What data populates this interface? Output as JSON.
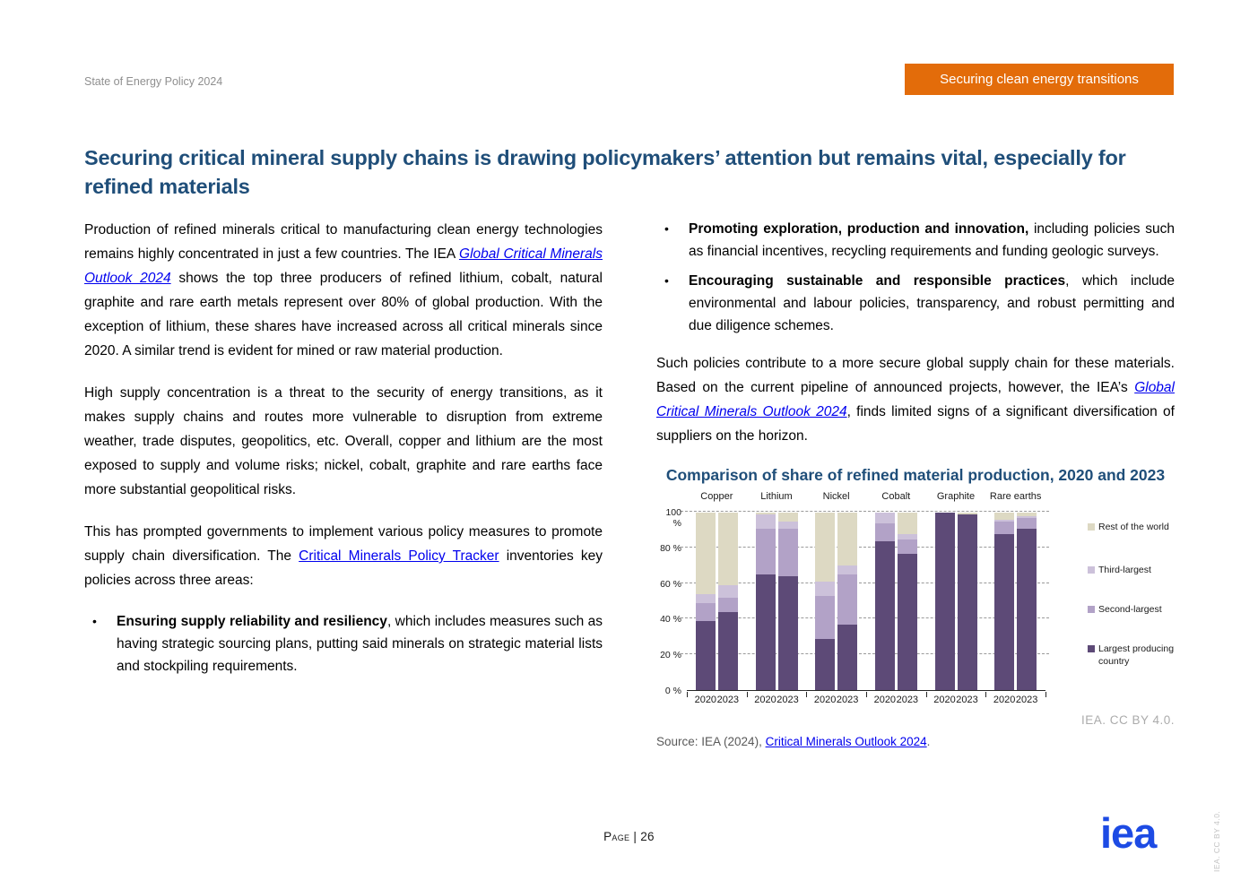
{
  "header": {
    "doc_title": "State of Energy Policy 2024",
    "banner_label": "Securing clean energy transitions",
    "banner_color": "#E36C0A"
  },
  "page_title": "Securing critical mineral supply chains is drawing policymakers’ attention but remains vital, especially for refined materials",
  "left_column": {
    "p1_pre": "Production of refined minerals critical to manufacturing clean energy technologies remains highly concentrated in just a few countries. The IEA ",
    "p1_link": "Global Critical Minerals Outlook 2024",
    "p1_post": " shows the top three producers of refined lithium, cobalt, natural graphite and rare earth metals represent over 80% of global production. With the exception of lithium, these shares have increased across all critical minerals since 2020. A similar trend is evident for mined or raw material production.",
    "p2": "High supply concentration is a threat to the security of energy transitions, as it makes supply chains and routes more vulnerable to disruption from extreme weather, trade disputes, geopolitics, etc. Overall, copper and lithium are the most exposed to supply and volume risks; nickel, cobalt, graphite and rare earths face more substantial geopolitical risks.",
    "p3_pre": "This has prompted governments to implement various policy measures to promote supply chain diversification. The ",
    "p3_link": "Critical Minerals Policy Tracker",
    "p3_post": " inventories key policies across three areas:",
    "bullet_marker": "•",
    "bullet1_bold": "Ensuring supply reliability and resiliency",
    "bullet1_rest": ", which includes measures such as having strategic sourcing plans, putting said minerals on strategic material lists and stockpiling requirements."
  },
  "right_column": {
    "bullet_marker": "•",
    "bullet2_bold": "Promoting exploration, production and innovation,",
    "bullet2_rest": " including policies such as financial incentives, recycling requirements and funding geologic surveys.",
    "bullet3_bold": "Encouraging sustainable and responsible practices",
    "bullet3_rest": ", which include environmental and labour policies, transparency, and robust permitting and due diligence schemes.",
    "p4_pre": "Such policies contribute to a more secure global supply chain for these materials. Based on the current pipeline of announced projects, however, the IEA’s ",
    "p4_link": "Global Critical Minerals Outlook 2024",
    "p4_post": ", finds limited signs of a significant diversification of suppliers on the horizon.",
    "cc_note": "IEA. CC BY 4.0.",
    "source_pre": "Source: IEA (2024), ",
    "source_link": "Critical Minerals Outlook 2024",
    "source_post": "."
  },
  "chart_data": {
    "type": "bar",
    "stacked": true,
    "title": "Comparison of share of refined material production, 2020 and 2023",
    "groups": [
      "Copper",
      "Lithium",
      "Nickel",
      "Cobalt",
      "Graphite",
      "Rare earths"
    ],
    "x_within_group": [
      "2020",
      "2023"
    ],
    "series": [
      {
        "name": "Largest producing country",
        "color": "#5D4A77",
        "values": [
          [
            39,
            44
          ],
          [
            65,
            64
          ],
          [
            29,
            37
          ],
          [
            84,
            77
          ],
          [
            100,
            99
          ],
          [
            88,
            91
          ]
        ]
      },
      {
        "name": "Second-largest",
        "color": "#B2A2C7",
        "values": [
          [
            10,
            8
          ],
          [
            26,
            27
          ],
          [
            24,
            28
          ],
          [
            10,
            8
          ],
          [
            0,
            0
          ],
          [
            7,
            6
          ]
        ]
      },
      {
        "name": "Third-largest",
        "color": "#CCC1DA",
        "values": [
          [
            5,
            7
          ],
          [
            8,
            4
          ],
          [
            8,
            5
          ],
          [
            6,
            3
          ],
          [
            0,
            0
          ],
          [
            1,
            1
          ]
        ]
      },
      {
        "name": "Rest of the world",
        "color": "#DDD9C3",
        "values": [
          [
            46,
            41
          ],
          [
            1,
            5
          ],
          [
            39,
            30
          ],
          [
            0,
            12
          ],
          [
            0,
            1
          ],
          [
            4,
            2
          ]
        ]
      }
    ],
    "ylim": [
      0,
      100
    ],
    "yticks": [
      0,
      20,
      40,
      60,
      80,
      100
    ],
    "ytick_suffix": " %",
    "grid": "dashed-horizontal",
    "legend_position": "right",
    "legend_order_top_to_bottom": [
      "Rest of the world",
      "Third-largest",
      "Second-largest",
      "Largest producing country"
    ]
  },
  "footer": {
    "page_label": "Page | 26",
    "logo_text": "iea",
    "side_note": "IEA. CC BY 4.0."
  }
}
